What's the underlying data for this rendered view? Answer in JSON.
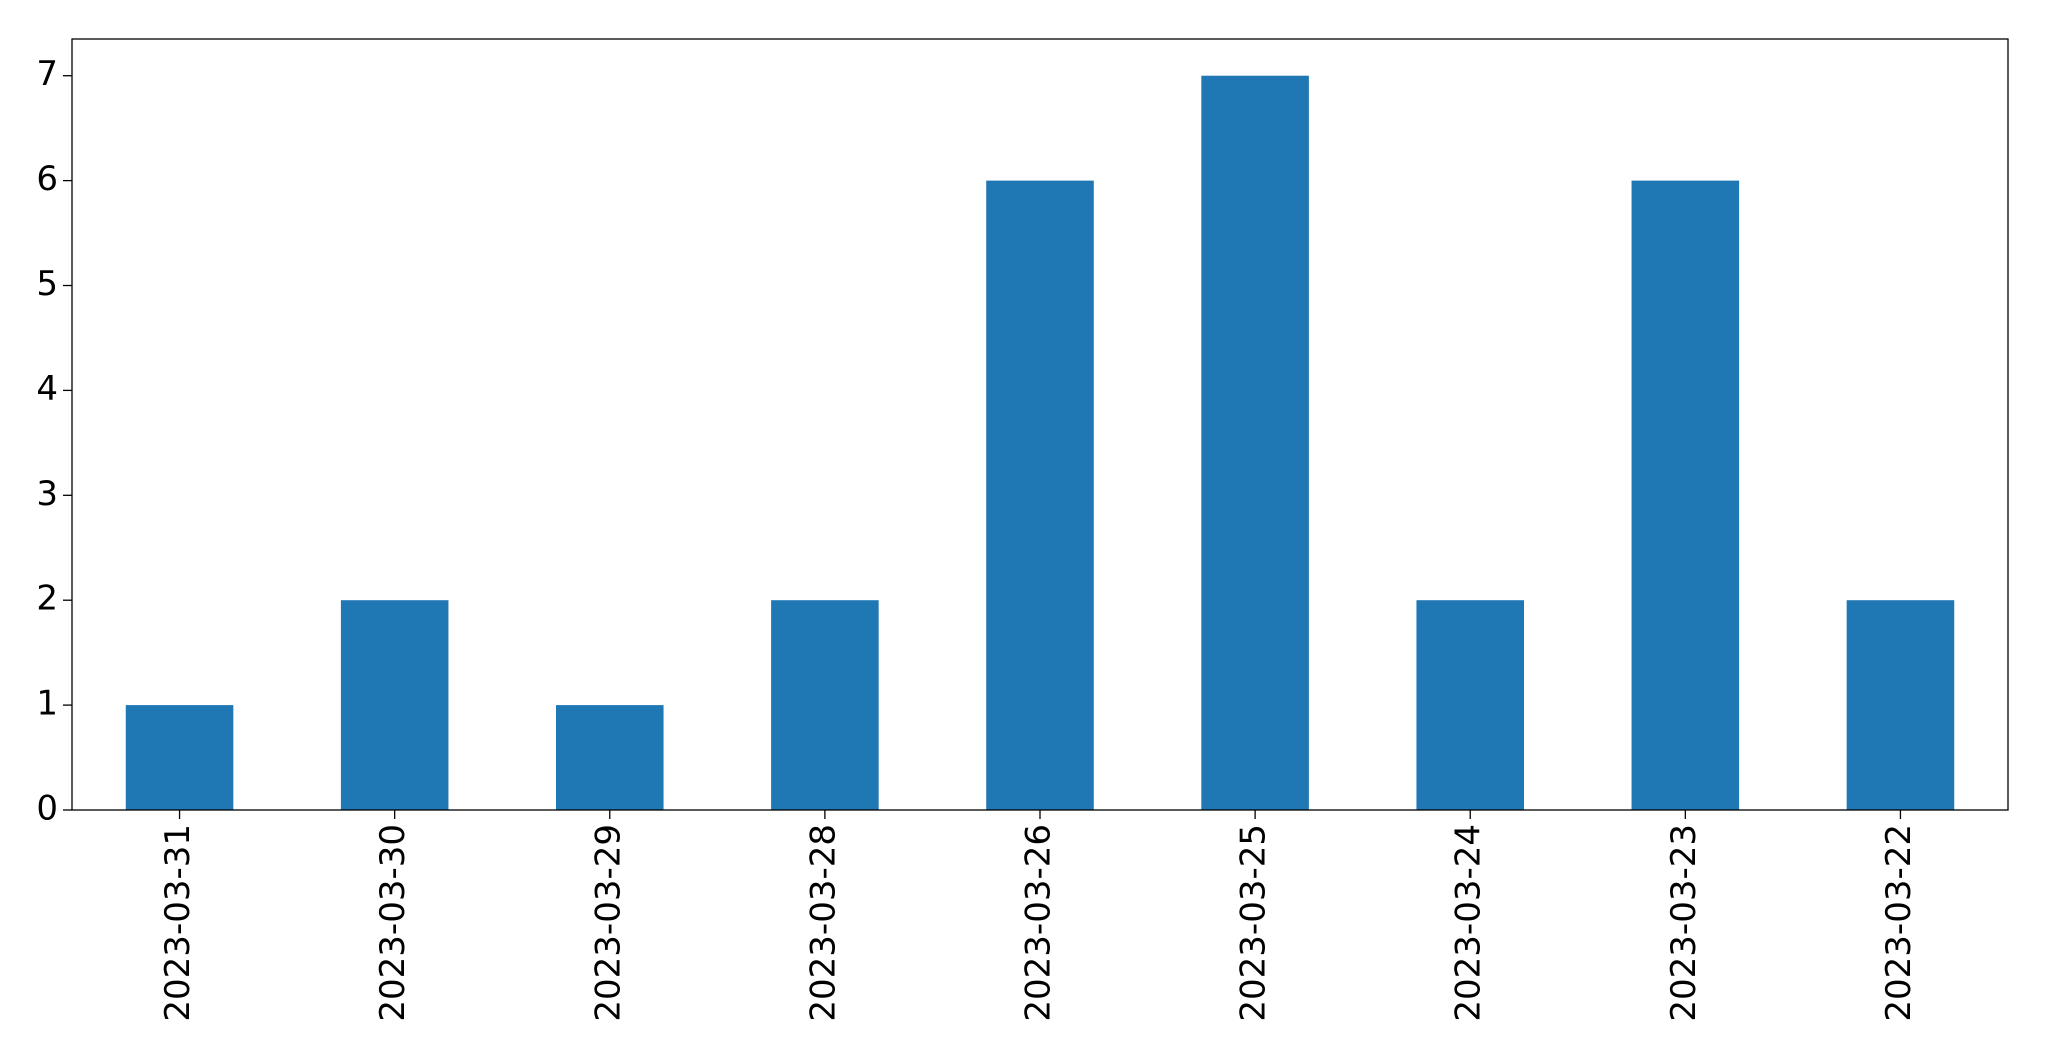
{
  "chart_data": {
    "type": "bar",
    "categories": [
      "2023-03-31",
      "2023-03-30",
      "2023-03-29",
      "2023-03-28",
      "2023-03-26",
      "2023-03-25",
      "2023-03-24",
      "2023-03-23",
      "2023-03-22"
    ],
    "values": [
      1,
      2,
      1,
      2,
      6,
      7,
      2,
      6,
      2
    ],
    "color": "#1f77b4",
    "ylim": [
      0,
      7.35
    ],
    "yticks": [
      0,
      1,
      2,
      3,
      4,
      5,
      6,
      7
    ],
    "grid": false
  }
}
